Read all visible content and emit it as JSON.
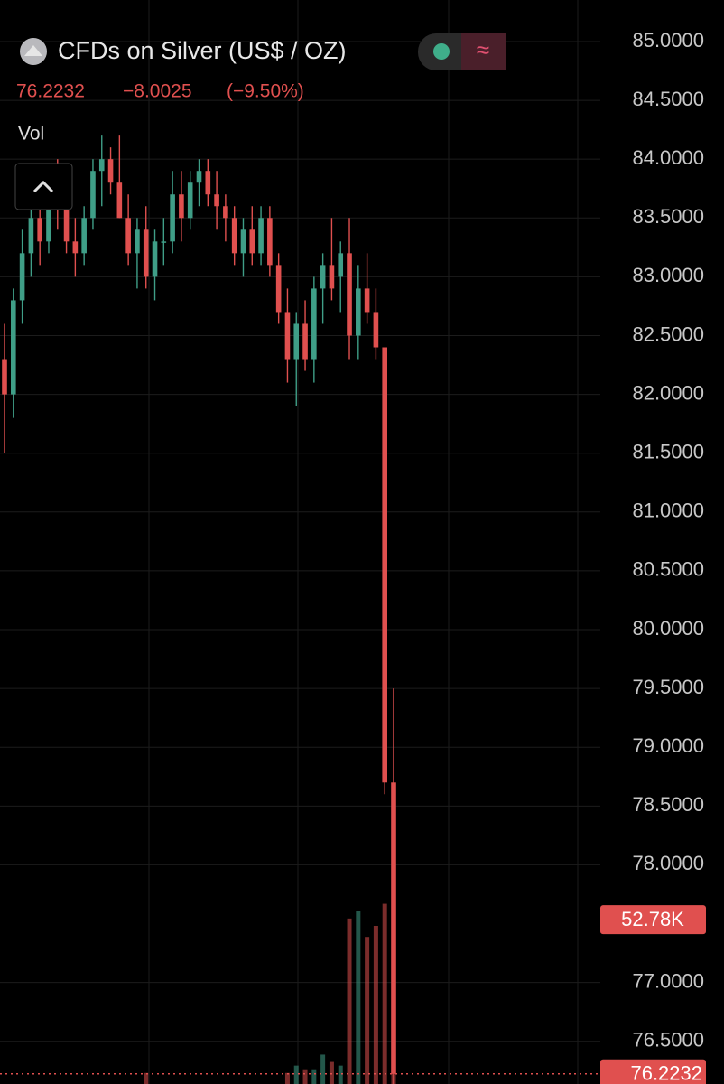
{
  "chart_data": {
    "type": "candlestick",
    "title": "CFDs on Silver (US$ / OZ)",
    "change": "−8.0025",
    "change_pct": "(−9.50%)",
    "volume_title": "Vol",
    "up_color": "#3f9e87",
    "down_color": "#e0504f",
    "open": [
      82.3,
      82.0,
      82.8,
      83.2,
      83.5,
      83.3,
      83.8,
      83.6,
      83.3,
      83.2,
      83.5,
      83.9,
      84.0,
      83.8,
      83.5,
      83.2,
      83.4,
      83.0,
      83.3,
      83.3,
      83.7,
      83.5,
      83.8,
      83.9,
      83.7,
      83.6,
      83.5,
      83.2,
      83.4,
      83.2,
      83.5,
      83.1,
      82.7,
      82.3,
      82.6,
      82.3,
      82.9,
      83.1,
      83.0,
      83.2,
      82.5,
      82.9,
      82.7,
      82.4,
      78.7
    ],
    "high": [
      82.6,
      82.9,
      83.4,
      83.6,
      83.8,
      83.9,
      84.0,
      83.7,
      83.5,
      83.6,
      84.0,
      84.2,
      84.1,
      84.2,
      83.7,
      83.5,
      83.6,
      83.4,
      83.5,
      83.9,
      83.9,
      83.9,
      84.0,
      84.0,
      83.9,
      83.7,
      83.6,
      83.5,
      83.6,
      83.6,
      83.6,
      83.2,
      82.9,
      82.7,
      82.8,
      83.0,
      83.2,
      83.5,
      83.3,
      83.5,
      83.1,
      83.2,
      82.9,
      82.4,
      79.5
    ],
    "low": [
      81.5,
      81.8,
      82.6,
      83.0,
      83.1,
      83.2,
      83.4,
      83.2,
      83.0,
      83.1,
      83.4,
      83.6,
      83.7,
      83.5,
      83.1,
      82.9,
      82.9,
      82.8,
      83.1,
      83.2,
      83.3,
      83.4,
      83.6,
      83.6,
      83.4,
      83.3,
      83.1,
      83.0,
      83.1,
      83.1,
      83.0,
      82.6,
      82.1,
      81.9,
      82.2,
      82.1,
      82.6,
      82.8,
      82.7,
      82.3,
      82.3,
      82.6,
      82.3,
      78.6,
      76.1
    ],
    "close": [
      82.0,
      82.8,
      83.2,
      83.5,
      83.3,
      83.8,
      83.6,
      83.3,
      83.2,
      83.5,
      83.9,
      84.0,
      83.8,
      83.5,
      83.2,
      83.4,
      83.0,
      83.3,
      83.3,
      83.7,
      83.5,
      83.8,
      83.9,
      83.7,
      83.6,
      83.5,
      83.2,
      83.4,
      83.2,
      83.5,
      83.1,
      82.7,
      82.3,
      82.6,
      82.3,
      82.9,
      83.1,
      82.9,
      83.2,
      82.5,
      82.9,
      82.7,
      82.4,
      78.7,
      76.2232
    ],
    "volume": [
      0,
      0,
      0,
      0,
      0,
      0,
      0,
      0,
      0,
      0,
      0,
      0,
      0,
      0,
      0,
      0,
      3,
      0,
      0,
      0,
      0,
      0,
      0,
      0,
      0,
      0,
      0,
      0,
      0,
      0,
      0,
      0,
      3,
      5,
      4,
      4,
      8,
      6,
      5,
      45,
      47,
      40,
      43,
      49,
      52.78
    ],
    "volume_labels": [
      null,
      null,
      null,
      null,
      null,
      null,
      null,
      null,
      null,
      null,
      null,
      null,
      null,
      null,
      null,
      null,
      null,
      null,
      null,
      null,
      null,
      null,
      null,
      null,
      null,
      null,
      null,
      null,
      null,
      null,
      null,
      null,
      null,
      null,
      null,
      null,
      null,
      null,
      null,
      null,
      null,
      null,
      null,
      null,
      "52.78K"
    ],
    "ylim": [
      76.137,
      85.353
    ],
    "yticks": [
      {
        "value": 85,
        "label": "85.0000"
      },
      {
        "value": 84.5,
        "label": "84.5000"
      },
      {
        "value": 84,
        "label": "84.0000"
      },
      {
        "value": 83.5,
        "label": "83.5000"
      },
      {
        "value": 83,
        "label": "83.0000"
      },
      {
        "value": 82.5,
        "label": "82.5000"
      },
      {
        "value": 82,
        "label": "82.0000"
      },
      {
        "value": 81.5,
        "label": "81.5000"
      },
      {
        "value": 81,
        "label": "81.0000"
      },
      {
        "value": 80.5,
        "label": "80.5000"
      },
      {
        "value": 80,
        "label": "80.0000"
      },
      {
        "value": 79.5,
        "label": "79.5000"
      },
      {
        "value": 79,
        "label": "79.0000"
      },
      {
        "value": 78.5,
        "label": "78.5000"
      },
      {
        "value": 78,
        "label": "78.0000"
      },
      {
        "value": 77,
        "label": "77.0000"
      },
      {
        "value": 76.5,
        "label": "76.5000"
      }
    ],
    "grid": true
  }
}
